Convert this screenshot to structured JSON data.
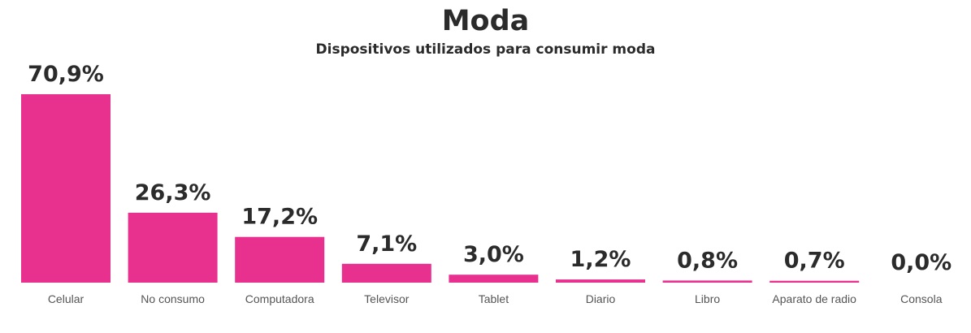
{
  "chart_data": {
    "type": "bar",
    "title": "Moda",
    "subtitle": "Dispositivos utilizados para consumir moda",
    "categories": [
      "Celular",
      "No consumo",
      "Computadora",
      "Televisor",
      "Tablet",
      "Diario",
      "Libro",
      "Aparato de radio",
      "Consola"
    ],
    "values": [
      70.9,
      26.3,
      17.2,
      7.1,
      3.0,
      1.2,
      0.8,
      0.7,
      0.0
    ],
    "value_labels": [
      "70,9%",
      "26,3%",
      "17,2%",
      "7,1%",
      "3,0%",
      "1,2%",
      "0,8%",
      "0,7%",
      "0,0%"
    ],
    "xlabel": "",
    "ylabel": "",
    "ylim": [
      0,
      70.9
    ],
    "grid": false,
    "legend": "none",
    "bar_color": "#e8308f"
  }
}
